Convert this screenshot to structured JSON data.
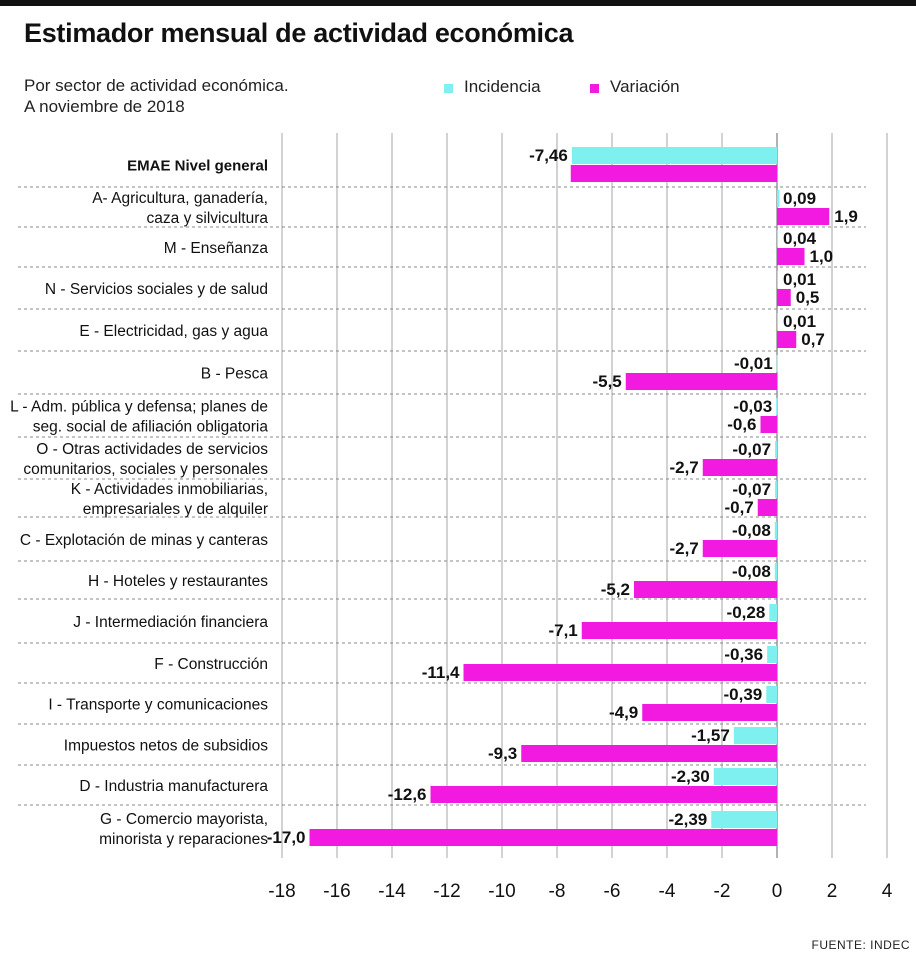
{
  "title": "Estimador mensual de actividad económica",
  "subtitle": [
    "Por sector de actividad económica.",
    "A noviembre de 2018"
  ],
  "source": "FUENTE: INDEC",
  "colors": {
    "incidencia": "#7ff0f0",
    "variacion": "#f21ae0",
    "grid": "#999999"
  },
  "chart_data": {
    "type": "bar",
    "orientation": "horizontal",
    "title": "Estimador mensual de actividad económica",
    "xlim": [
      -18,
      4
    ],
    "xticks": [
      "-18",
      "-16",
      "-14",
      "-12",
      "-10",
      "-8",
      "-6",
      "-4",
      "-2",
      "0",
      "2",
      "4"
    ],
    "legend": "top",
    "grid": "vertical gridlines, dashed row separators",
    "categories": [
      [
        "EMAE Nivel general"
      ],
      [
        "A- Agricultura, ganadería,",
        "caza y silvicultura"
      ],
      [
        "M - Enseñanza"
      ],
      [
        "N - Servicios sociales y de salud"
      ],
      [
        "E - Electricidad, gas y agua"
      ],
      [
        "B - Pesca"
      ],
      [
        "L - Adm. pública y defensa; planes de",
        "seg. social de afiliación obligatoria"
      ],
      [
        "O - Otras actividades de servicios",
        "comunitarios, sociales y personales"
      ],
      [
        "K - Actividades inmobiliarias,",
        "empresariales y de alquiler"
      ],
      [
        "C - Explotación de minas y canteras"
      ],
      [
        "H - Hoteles y restaurantes"
      ],
      [
        "J - Intermediación financiera"
      ],
      [
        "F - Construcción"
      ],
      [
        "I - Transporte y comunicaciones"
      ],
      [
        "Impuestos netos de subsidios"
      ],
      [
        "D - Industria manufacturera"
      ],
      [
        "G - Comercio mayorista,",
        "minorista y reparaciones"
      ]
    ],
    "series": [
      {
        "name": "Incidencia",
        "color": "#7ff0f0",
        "values": [
          -7.46,
          0.09,
          0.04,
          0.01,
          0.01,
          -0.01,
          -0.03,
          -0.07,
          -0.07,
          -0.08,
          -0.08,
          -0.28,
          -0.36,
          -0.39,
          -1.57,
          -2.3,
          -2.39
        ],
        "labels": [
          "-7,46",
          "0,09",
          "0,04",
          "0,01",
          "0,01",
          "-0,01",
          "-0,03",
          "-0,07",
          "-0,07",
          "-0,08",
          "-0,08",
          "-0,28",
          "-0,36",
          "-0,39",
          "-1,57",
          "-2,30",
          "-2,39"
        ]
      },
      {
        "name": "Variación",
        "color": "#f21ae0",
        "values": [
          -7.5,
          1.9,
          1.0,
          0.5,
          0.7,
          -5.5,
          -0.6,
          -2.7,
          -0.7,
          -2.7,
          -5.2,
          -7.1,
          -11.4,
          -4.9,
          -9.3,
          -12.6,
          -17.0
        ],
        "labels": [
          "",
          "1,9",
          "1,0",
          "0,5",
          "0,7",
          "-5,5",
          "-0,6",
          "-2,7",
          "-0,7",
          "-2,7",
          "-5,2",
          "-7,1",
          "-11,4",
          "-4,9",
          "-9,3",
          "-12,6",
          "-17,0"
        ]
      }
    ]
  }
}
